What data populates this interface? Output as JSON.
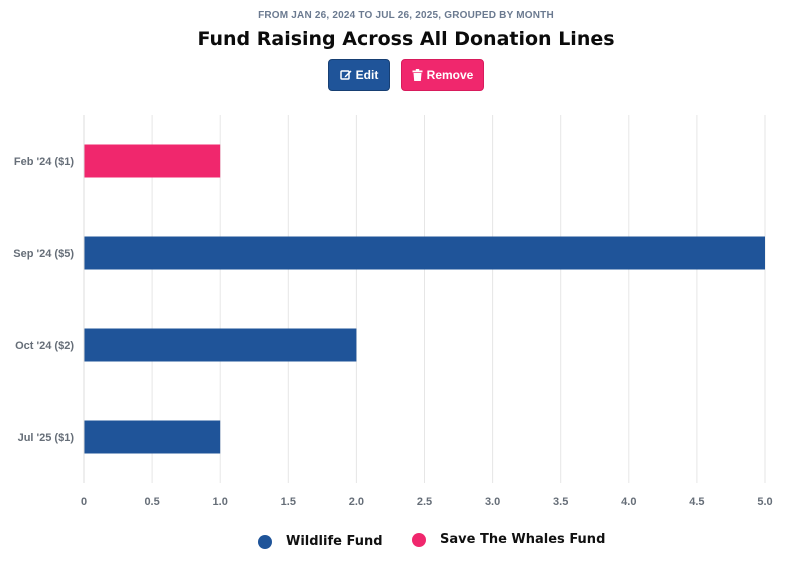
{
  "header": {
    "subtitle": "FROM JAN 26, 2024 TO JUL 26, 2025, GROUPED BY MONTH",
    "title": "Fund Raising Across All Donation Lines"
  },
  "actions": {
    "edit_label": "Edit",
    "edit_icon": "edit-icon",
    "remove_label": "Remove",
    "remove_icon": "trash-icon"
  },
  "colors": {
    "wildlife": "#1f5499",
    "whales": "#f0276d",
    "grid": "#e6e6e6",
    "axis_label": "#666e78"
  },
  "chart_data": {
    "type": "bar",
    "orientation": "horizontal",
    "subtitle": "FROM JAN 26, 2024 TO JUL 26, 2025, GROUPED BY MONTH",
    "title": "Fund Raising Across All Donation Lines",
    "categories": [
      "Feb '24 ($1)",
      "Sep '24 ($5)",
      "Oct '24 ($2)",
      "Jul '25 ($1)"
    ],
    "series": [
      {
        "name": "Wildlife Fund",
        "color": "#1f5499",
        "values": [
          0,
          5,
          2,
          1
        ]
      },
      {
        "name": "Save The Whales Fund",
        "color": "#f0276d",
        "values": [
          1,
          0,
          0,
          0
        ]
      }
    ],
    "xlim": [
      0,
      5
    ],
    "xticks": [
      "0",
      "0.5",
      "1.0",
      "1.5",
      "2.0",
      "2.5",
      "3.0",
      "3.5",
      "4.0",
      "4.5",
      "5.0"
    ],
    "grid": true,
    "legend_position": "bottom"
  },
  "legend": {
    "items": [
      {
        "label": "Wildlife Fund",
        "color": "#1f5499"
      },
      {
        "label": "Save The Whales Fund",
        "color": "#f0276d"
      }
    ]
  }
}
